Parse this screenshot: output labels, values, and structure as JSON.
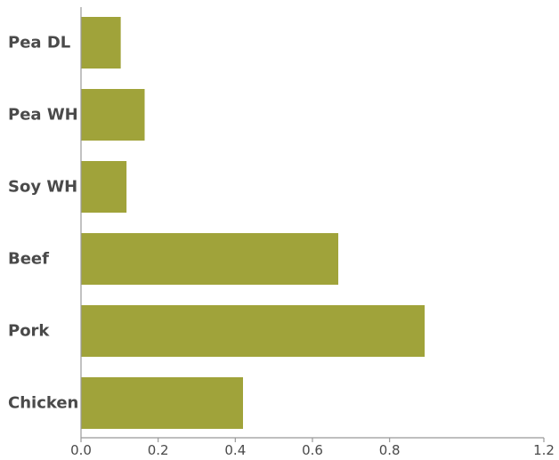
{
  "chart_data": {
    "type": "bar",
    "orientation": "horizontal",
    "categories": [
      "Pea DL",
      "Pea WH",
      "Soy WH",
      "Beef",
      "Pork",
      "Chicken"
    ],
    "values": [
      0.103,
      0.165,
      0.118,
      0.667,
      0.891,
      0.42
    ],
    "xlim": [
      0,
      1.2
    ],
    "xticks": [
      "0.0",
      "0.2",
      "0.4",
      "0.6",
      "0.8",
      "1.2"
    ],
    "xtick_values": [
      0,
      0.2,
      0.4,
      0.6,
      0.8,
      1.2
    ],
    "title": "",
    "xlabel": "",
    "ylabel": "",
    "grid": false,
    "legend": "none",
    "colors": {
      "bar": "#a0a33a",
      "axis": "#999999",
      "text": "#4a4a4a"
    }
  }
}
